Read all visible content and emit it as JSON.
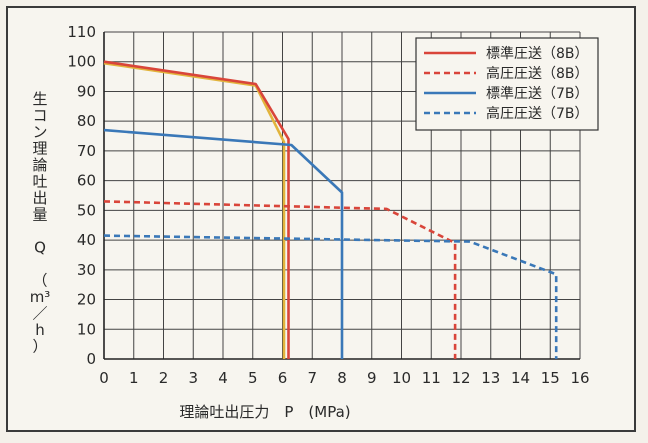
{
  "chart_data": {
    "type": "line",
    "title": "",
    "xlabel": "理論吐出圧力　P　(MPa)",
    "ylabel_chars": [
      "生",
      "コ",
      "ン",
      "理",
      "論",
      "吐",
      "出",
      "量",
      "",
      "Q",
      "",
      "（",
      "m³",
      "／",
      "h",
      "）"
    ],
    "xlim": [
      0,
      16
    ],
    "ylim": [
      0,
      110
    ],
    "x_ticks": [
      "0",
      "1",
      "2",
      "3",
      "4",
      "5",
      "6",
      "7",
      "8",
      "9",
      "10",
      "11",
      "12",
      "13",
      "14",
      "15",
      "16"
    ],
    "y_ticks": [
      "0",
      "10",
      "20",
      "30",
      "40",
      "50",
      "60",
      "70",
      "80",
      "90",
      "100",
      "110"
    ],
    "grid": true,
    "legend_position": "top-right",
    "series": [
      {
        "name": "標準圧送（8B）",
        "color": "#d9453a",
        "dash": "solid",
        "points": [
          [
            0,
            100
          ],
          [
            5.1,
            92.5
          ],
          [
            6.2,
            74
          ],
          [
            6.2,
            0
          ]
        ]
      },
      {
        "name": "高圧圧送（8B）",
        "color": "#d9453a",
        "dash": "dashed",
        "points": [
          [
            0,
            53
          ],
          [
            9.5,
            50.5
          ],
          [
            11.8,
            39
          ],
          [
            11.8,
            0
          ]
        ]
      },
      {
        "name": "標準圧送（7B）",
        "color": "#3a78b8",
        "dash": "solid",
        "points": [
          [
            0,
            77
          ],
          [
            6.3,
            72
          ],
          [
            8,
            56
          ],
          [
            8,
            0
          ]
        ]
      },
      {
        "name": "高圧圧送（7B）",
        "color": "#3a78b8",
        "dash": "dashed",
        "points": [
          [
            0,
            41.5
          ],
          [
            12.3,
            39.5
          ],
          [
            15.2,
            28.5
          ],
          [
            15.2,
            0
          ]
        ]
      }
    ],
    "extra_line": {
      "color": "#e2b43c",
      "points": [
        [
          0,
          99.5
        ],
        [
          5.1,
          92
        ],
        [
          6.05,
          73
        ],
        [
          6.05,
          0
        ]
      ]
    }
  }
}
